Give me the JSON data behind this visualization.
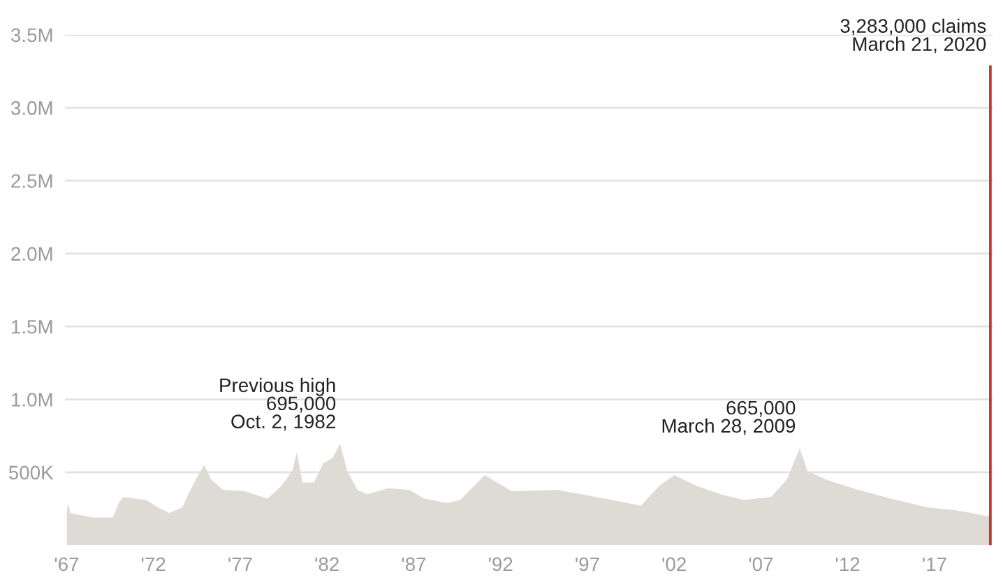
{
  "chart_data": {
    "type": "area",
    "series": [
      {
        "color": "#dedad4",
        "x": [
          "1967-01-07",
          "1967-02-04",
          "1967-03-18",
          "1968-07-01",
          "1969-09-01",
          "1970-01-03",
          "1970-04-01",
          "1971-08-01",
          "1972-04-01",
          "1972-12-01",
          "1973-09-01",
          "1974-01-05",
          "1974-08-01",
          "1974-12-01",
          "1975-05-01",
          "1976-01-03",
          "1977-04-01",
          "1978-08-01",
          "1979-05-01",
          "1980-01-05",
          "1980-04-05",
          "1980-08-01",
          "1981-04-01",
          "1981-10-10",
          "1982-05-01",
          "1982-10-02",
          "1983-03-01",
          "1983-10-01",
          "1984-05-01",
          "1985-07-01",
          "1986-10-01",
          "1987-08-01",
          "1988-12-01",
          "1989-09-01",
          "1991-02-01",
          "1992-02-01",
          "1992-09-01",
          "1995-04-01",
          "1998-01-03",
          "2000-02-01",
          "2001-03-01",
          "2002-01-05",
          "2003-04-01",
          "2004-09-01",
          "2006-01-07",
          "2007-08-01",
          "2008-07-01",
          "2009-03-28",
          "2009-09-01",
          "2010-10-01",
          "2012-08-01",
          "2014-07-01",
          "2016-08-01",
          "2018-03-01",
          "2019-03-01",
          "2020-01-04",
          "2020-03-14"
        ],
        "values": [
          240000,
          290000,
          220000,
          190000,
          190000,
          290000,
          330000,
          310000,
          260000,
          220000,
          260000,
          350000,
          480000,
          550000,
          450000,
          380000,
          370000,
          320000,
          400000,
          510000,
          640000,
          430000,
          430000,
          560000,
          600000,
          695000,
          510000,
          380000,
          350000,
          390000,
          380000,
          320000,
          290000,
          310000,
          480000,
          410000,
          370000,
          380000,
          320000,
          270000,
          410000,
          480000,
          410000,
          350000,
          310000,
          330000,
          450000,
          665000,
          510000,
          450000,
          380000,
          320000,
          260000,
          240000,
          220000,
          200000,
          210000
        ]
      },
      {
        "type": "bar",
        "color": "#c8372d",
        "x": [
          "2020-03-21"
        ],
        "values": [
          3283000
        ]
      }
    ],
    "xlim": [
      "1966-12-01",
      "2020-05-15"
    ],
    "xticks": [
      {
        "value": "1967-01-01",
        "label": "'67"
      },
      {
        "value": "1972-01-01",
        "label": "'72"
      },
      {
        "value": "1977-01-01",
        "label": "'77"
      },
      {
        "value": "1982-01-01",
        "label": "'82"
      },
      {
        "value": "1987-01-01",
        "label": "'87"
      },
      {
        "value": "1992-01-01",
        "label": "'92"
      },
      {
        "value": "1997-01-01",
        "label": "'97"
      },
      {
        "value": "2002-01-01",
        "label": "'02"
      },
      {
        "value": "2007-01-01",
        "label": "'07"
      },
      {
        "value": "2012-01-01",
        "label": "'12"
      },
      {
        "value": "2017-01-01",
        "label": "'17"
      }
    ],
    "ylim": [
      0,
      3500000
    ],
    "yticks": [
      {
        "value": 500000,
        "label": "500K"
      },
      {
        "value": 1000000,
        "label": "1.0M"
      },
      {
        "value": 1500000,
        "label": "1.5M"
      },
      {
        "value": 2000000,
        "label": "2.0M"
      },
      {
        "value": 2500000,
        "label": "2.5M"
      },
      {
        "value": 3000000,
        "label": "3.0M"
      },
      {
        "value": 3500000,
        "label": "3.5M"
      }
    ],
    "grid": "y",
    "legend": false,
    "annotations": [
      {
        "text": "Previous high\n695,000\nOct. 2, 1982",
        "x": "1982-10-02",
        "y": 695000
      },
      {
        "text": "665,000\nMarch 28, 2009",
        "x": "2009-03-28",
        "y": 665000
      },
      {
        "text": "3,283,000 claims\nMarch 21, 2020",
        "x": "2020-03-21",
        "y": 3283000
      }
    ]
  }
}
